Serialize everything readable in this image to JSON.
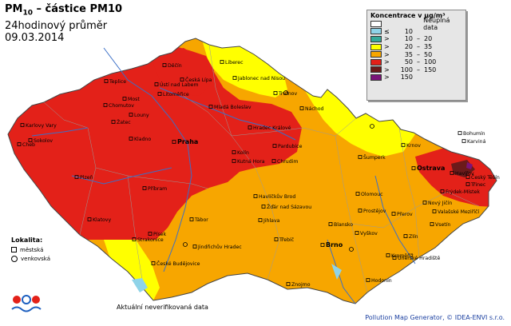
{
  "title": {
    "pm": "PM",
    "sub": "10",
    "rest": " – částice PM10",
    "line2": "24hodinový průměr",
    "date": "09.03.2014"
  },
  "legend": {
    "title": "Koncentrace v µg/m³",
    "rows": [
      {
        "color": "#ffffff",
        "op": "",
        "num": "",
        "dash": "",
        "num2": "Neúplná data"
      },
      {
        "color": "#8fd3e8",
        "op": "≤",
        "num": "10",
        "dash": "",
        "num2": ""
      },
      {
        "color": "#35a89a",
        "op": ">",
        "num": "10",
        "dash": "–",
        "num2": "20"
      },
      {
        "color": "#ffff00",
        "op": ">",
        "num": "20",
        "dash": "–",
        "num2": "35"
      },
      {
        "color": "#f7a600",
        "op": ">",
        "num": "35",
        "dash": "–",
        "num2": "50"
      },
      {
        "color": "#e32119",
        "op": ">",
        "num": "50",
        "dash": "–",
        "num2": "100"
      },
      {
        "color": "#6b1a1a",
        "op": ">",
        "num": "100",
        "dash": "–",
        "num2": "150"
      },
      {
        "color": "#7a1479",
        "op": ">",
        "num": "150",
        "dash": "",
        "num2": ""
      }
    ]
  },
  "cities": [
    {
      "name": "Děčín"
    },
    {
      "name": "Liberec"
    },
    {
      "name": "Jablonec nad Nisou"
    },
    {
      "name": "Teplice"
    },
    {
      "name": "Ústí nad Labem"
    },
    {
      "name": "Česká Lípa"
    },
    {
      "name": "Most"
    },
    {
      "name": "Litoměřice"
    },
    {
      "name": "Chomutov"
    },
    {
      "name": "Trutnov"
    },
    {
      "name": "Mladá Boleslav"
    },
    {
      "name": "Náchod"
    },
    {
      "name": "Louny"
    },
    {
      "name": "Žatec"
    },
    {
      "name": "Karlovy Vary"
    },
    {
      "name": "Hradec Králové"
    },
    {
      "name": "Sokolov"
    },
    {
      "name": "Cheb"
    },
    {
      "name": "Kladno"
    },
    {
      "name": "Praha"
    },
    {
      "name": "Pardubice"
    },
    {
      "name": "Kolín"
    },
    {
      "name": "Kutná Hora"
    },
    {
      "name": "Chrudim"
    },
    {
      "name": "Krnov"
    },
    {
      "name": "Bohumín"
    },
    {
      "name": "Karviná"
    },
    {
      "name": "Ostrava"
    },
    {
      "name": "Havířov"
    },
    {
      "name": "Český Těšín"
    },
    {
      "name": "Třinec"
    },
    {
      "name": "Frýdek-Místek"
    },
    {
      "name": "Šumperk"
    },
    {
      "name": "Plzeň"
    },
    {
      "name": "Příbram"
    },
    {
      "name": "Havlíčkův Brod"
    },
    {
      "name": "Olomouc"
    },
    {
      "name": "Žďár nad Sázavou"
    },
    {
      "name": "Nový Jičín"
    },
    {
      "name": "Valašské Meziříčí"
    },
    {
      "name": "Prostějov"
    },
    {
      "name": "Přerov"
    },
    {
      "name": "Klatovy"
    },
    {
      "name": "Tábor"
    },
    {
      "name": "Jihlava"
    },
    {
      "name": "Blansko"
    },
    {
      "name": "Vsetín"
    },
    {
      "name": "Písek"
    },
    {
      "name": "Třebíč"
    },
    {
      "name": "Brno"
    },
    {
      "name": "Vyškov"
    },
    {
      "name": "Zlín"
    },
    {
      "name": "Strakonice"
    },
    {
      "name": "Jindřichův Hradec"
    },
    {
      "name": "Kroměříž"
    },
    {
      "name": "České Budějovice"
    },
    {
      "name": "Uherské Hradiště"
    },
    {
      "name": "Hodonín"
    },
    {
      "name": "Znojmo"
    }
  ],
  "lokalita": {
    "heading": "Lokalita:",
    "item1": "městská",
    "item2": "venkovská"
  },
  "note": "Aktuální neverifikovaná data",
  "credit": "Pollution Map Generator, © IDEA-ENVI s.r.o."
}
